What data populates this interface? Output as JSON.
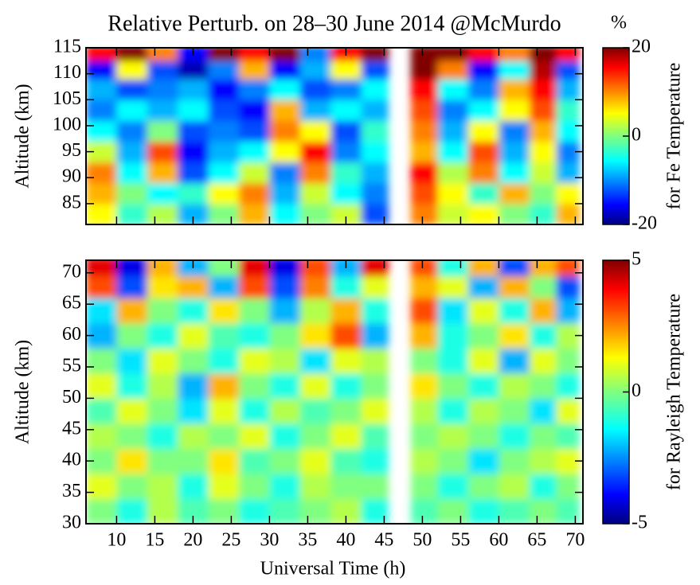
{
  "chart_data": [
    {
      "type": "heatmap",
      "title": "Relative Perturb. on 28–30 June 2014 @McMurdo",
      "y_label": "Altitude (km)",
      "colorbar_label": "for Fe Temperature",
      "colorbar_unit": "%",
      "xlim": [
        6,
        71
      ],
      "xticks": [
        10,
        15,
        20,
        25,
        30,
        35,
        40,
        45,
        50,
        55,
        60,
        65,
        70
      ],
      "ylim": [
        81,
        115
      ],
      "yticks": [
        85,
        90,
        95,
        100,
        105,
        110,
        115
      ],
      "clim": [
        -20,
        20
      ],
      "cticks": [
        -20,
        0,
        20
      ],
      "x": [
        8,
        12,
        16,
        20,
        24,
        28,
        32,
        36,
        40,
        44,
        47,
        50,
        54,
        58,
        62,
        66,
        69
      ],
      "y": [
        83,
        87,
        91,
        95,
        99,
        103,
        107,
        111,
        114
      ],
      "z": [
        [
          5,
          -3,
          2,
          -8,
          0,
          8,
          -5,
          0,
          3,
          -12,
          null,
          10,
          3,
          5,
          0,
          -3,
          8
        ],
        [
          8,
          0,
          -5,
          -3,
          5,
          10,
          -8,
          3,
          -5,
          -10,
          null,
          12,
          5,
          -3,
          8,
          0,
          5
        ],
        [
          10,
          -5,
          8,
          -12,
          -5,
          3,
          -10,
          10,
          -3,
          -8,
          null,
          15,
          2,
          10,
          -5,
          3,
          -8
        ],
        [
          3,
          -8,
          12,
          -15,
          -8,
          -5,
          5,
          15,
          -10,
          -5,
          null,
          8,
          -5,
          12,
          -8,
          5,
          -10
        ],
        [
          -5,
          -10,
          0,
          -12,
          -10,
          -12,
          10,
          5,
          -12,
          -3,
          null,
          10,
          -8,
          5,
          -10,
          8,
          -5
        ],
        [
          -10,
          -5,
          -8,
          -5,
          -12,
          -15,
          8,
          -8,
          -5,
          -8,
          null,
          12,
          -10,
          -5,
          5,
          12,
          -3
        ],
        [
          -8,
          -12,
          -10,
          -8,
          -15,
          -10,
          -5,
          -12,
          -10,
          -5,
          null,
          15,
          -5,
          -10,
          8,
          15,
          -8
        ],
        [
          -15,
          5,
          -12,
          -18,
          -10,
          8,
          -15,
          -8,
          5,
          -12,
          null,
          20,
          10,
          -15,
          -5,
          18,
          -12
        ],
        [
          15,
          20,
          10,
          -15,
          20,
          15,
          20,
          -10,
          15,
          20,
          null,
          20,
          20,
          15,
          10,
          20,
          15
        ]
      ]
    },
    {
      "type": "heatmap",
      "x_label": "Universal Time (h)",
      "y_label": "Altitude (km)",
      "colorbar_label": "for Rayleigh Temperature",
      "xlim": [
        6,
        71
      ],
      "xticks": [
        10,
        15,
        20,
        25,
        30,
        35,
        40,
        45,
        50,
        55,
        60,
        65,
        70
      ],
      "ylim": [
        30,
        72
      ],
      "yticks": [
        30,
        35,
        40,
        45,
        50,
        55,
        60,
        65,
        70
      ],
      "clim": [
        -5,
        5
      ],
      "cticks": [
        -5,
        0,
        5
      ],
      "x": [
        8,
        12,
        16,
        20,
        24,
        28,
        32,
        36,
        40,
        44,
        47,
        50,
        54,
        58,
        62,
        66,
        69
      ],
      "y": [
        32,
        36,
        40,
        44,
        48,
        52,
        56,
        60,
        64,
        68,
        71
      ],
      "z": [
        [
          0,
          -1,
          0.5,
          -0.5,
          0,
          -1,
          -0.5,
          0,
          0.5,
          -1,
          null,
          -0.5,
          0,
          -1,
          -0.5,
          0,
          -0.5
        ],
        [
          1,
          0,
          0.5,
          -1,
          1,
          0,
          -1,
          0.5,
          0,
          0,
          null,
          0,
          -1,
          0,
          0.5,
          -1,
          0
        ],
        [
          0,
          1.5,
          0,
          0,
          1.5,
          -0.5,
          0,
          1,
          -0.5,
          -1,
          null,
          0.5,
          0,
          -1.5,
          0,
          0.5,
          1
        ],
        [
          0.5,
          0,
          -1,
          0.5,
          0,
          1,
          -1,
          0,
          1,
          -0.5,
          null,
          0,
          0.5,
          0,
          -1,
          0,
          -0.5
        ],
        [
          -0.5,
          1,
          0,
          -1.5,
          1,
          -1,
          0.5,
          -0.5,
          0,
          1,
          null,
          0.5,
          -1,
          0.5,
          0,
          -1.5,
          1
        ],
        [
          1,
          -1,
          0.5,
          -2,
          2,
          0,
          -1,
          1,
          -1,
          0,
          null,
          1.5,
          0,
          -1,
          0.5,
          0,
          -1
        ],
        [
          0,
          -1.5,
          1,
          0,
          -1,
          1,
          0.5,
          -1.5,
          1,
          0.5,
          null,
          0,
          -1,
          1,
          -2,
          1,
          0
        ],
        [
          -2,
          0,
          -1,
          1,
          -0.5,
          -1,
          0,
          1.5,
          3,
          -2,
          null,
          2,
          -1,
          0,
          1.5,
          -1,
          0.5
        ],
        [
          -1.5,
          2,
          0,
          -1,
          1.5,
          0,
          -2,
          0.5,
          2,
          -1,
          null,
          3,
          -1.5,
          1,
          -1,
          2,
          -2
        ],
        [
          3,
          -3,
          1.5,
          2,
          -2,
          3,
          -3,
          2.5,
          -1,
          1,
          null,
          2,
          1,
          -2,
          2,
          0,
          -3
        ],
        [
          4,
          -4,
          2,
          -2,
          0,
          4,
          -4,
          3,
          -2,
          4,
          null,
          3,
          -1,
          2,
          -3,
          2,
          3
        ]
      ]
    }
  ]
}
